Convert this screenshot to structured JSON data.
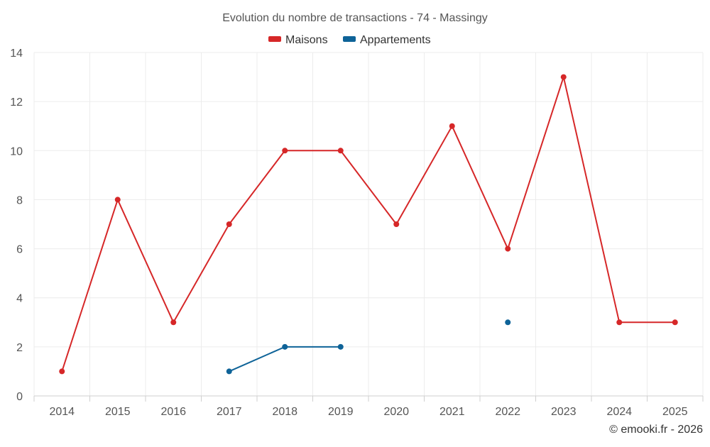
{
  "chart_data": {
    "type": "line",
    "title": "Evolution du nombre de transactions - 74 - Massingy",
    "categories": [
      "2014",
      "2015",
      "2016",
      "2017",
      "2018",
      "2019",
      "2020",
      "2021",
      "2022",
      "2023",
      "2024",
      "2025"
    ],
    "ylim": [
      0,
      14
    ],
    "yticks": [
      0,
      2,
      4,
      6,
      8,
      10,
      12,
      14
    ],
    "grid": true,
    "legend_position": "top-center",
    "series": [
      {
        "name": "Maisons",
        "color": "#d62728",
        "values": [
          1,
          8,
          3,
          7,
          10,
          10,
          7,
          11,
          6,
          13,
          3,
          3
        ]
      },
      {
        "name": "Appartements",
        "color": "#0e6398",
        "values": [
          null,
          null,
          null,
          1,
          2,
          2,
          null,
          null,
          3,
          null,
          null,
          null
        ]
      }
    ]
  },
  "footer": {
    "credit": "© emooki.fr - 2026"
  }
}
